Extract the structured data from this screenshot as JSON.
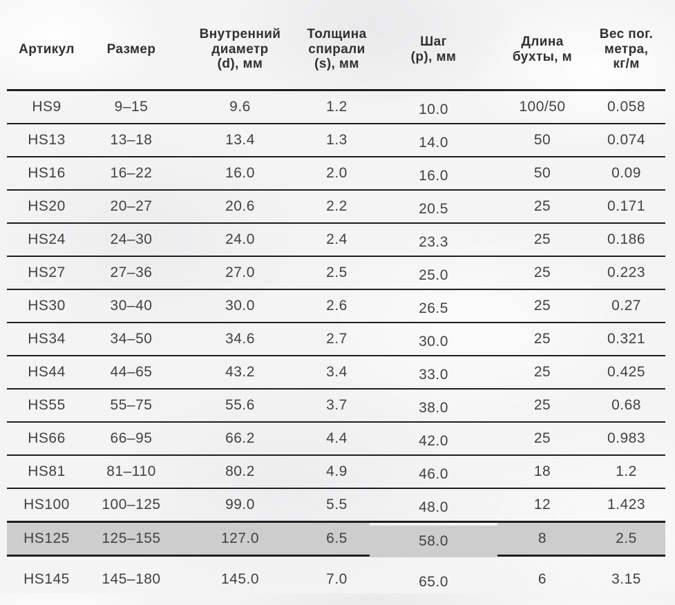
{
  "colors": {
    "highlight_color": "#cdcdcd",
    "line_color": "#1e1e1e",
    "text_color": "#414141",
    "header_text_color": "#303030",
    "background_color": "#f4f4f5"
  },
  "chart_data": {
    "type": "table",
    "title": "",
    "grid": "horizontal-rules-only",
    "columns": [
      {
        "id": "article",
        "label": "Артикул",
        "lines": [
          "Артикул"
        ]
      },
      {
        "id": "size",
        "label": "Размер",
        "lines": [
          "Размер"
        ]
      },
      {
        "id": "inner-diameter",
        "label": "Внутренний диаметр (d), мм",
        "lines": [
          "Внутренний",
          "диаметр",
          "(d), мм"
        ]
      },
      {
        "id": "spiral-thickness",
        "label": "Толщина спирали (s), мм",
        "lines": [
          "Толщина",
          "спирали",
          "(s), мм"
        ]
      },
      {
        "id": "pitch",
        "label": "Шаг (p), мм",
        "lines": [
          "Шаг",
          "(p), мм"
        ]
      },
      {
        "id": "coil-length",
        "label": "Длина бухты, м",
        "lines": [
          "Длина",
          "бухты, м"
        ]
      },
      {
        "id": "weight-per-meter",
        "label": "Вес пог. метра, кг/м",
        "lines": [
          "Вес пог.",
          "метра,",
          "кг/м"
        ]
      }
    ],
    "rows": [
      {
        "cells": [
          "HS9",
          "9–15",
          "9.6",
          "1.2",
          "10.0",
          "100/50",
          "0.058"
        ],
        "highlighted": false
      },
      {
        "cells": [
          "HS13",
          "13–18",
          "13.4",
          "1.3",
          "14.0",
          "50",
          "0.074"
        ],
        "highlighted": false
      },
      {
        "cells": [
          "HS16",
          "16–22",
          "16.0",
          "2.0",
          "16.0",
          "50",
          "0.09"
        ],
        "highlighted": false
      },
      {
        "cells": [
          "HS20",
          "20–27",
          "20.6",
          "2.2",
          "20.5",
          "25",
          "0.171"
        ],
        "highlighted": false
      },
      {
        "cells": [
          "HS24",
          "24–30",
          "24.0",
          "2.4",
          "23.3",
          "25",
          "0.186"
        ],
        "highlighted": false
      },
      {
        "cells": [
          "HS27",
          "27–36",
          "27.0",
          "2.5",
          "25.0",
          "25",
          "0.223"
        ],
        "highlighted": false
      },
      {
        "cells": [
          "HS30",
          "30–40",
          "30.0",
          "2.6",
          "26.5",
          "25",
          "0.27"
        ],
        "highlighted": false
      },
      {
        "cells": [
          "HS34",
          "34–50",
          "34.6",
          "2.7",
          "30.0",
          "25",
          "0.321"
        ],
        "highlighted": false
      },
      {
        "cells": [
          "HS44",
          "44–65",
          "43.2",
          "3.4",
          "33.0",
          "25",
          "0.425"
        ],
        "highlighted": false
      },
      {
        "cells": [
          "HS55",
          "55–75",
          "55.6",
          "3.7",
          "38.0",
          "25",
          "0.68"
        ],
        "highlighted": false
      },
      {
        "cells": [
          "HS66",
          "66–95",
          "66.2",
          "4.4",
          "42.0",
          "25",
          "0.983"
        ],
        "highlighted": false
      },
      {
        "cells": [
          "HS81",
          "81–110",
          "80.2",
          "4.9",
          "46.0",
          "18",
          "1.2"
        ],
        "highlighted": false
      },
      {
        "cells": [
          "HS100",
          "100–125",
          "99.0",
          "5.5",
          "48.0",
          "12",
          "1.423"
        ],
        "highlighted": false
      },
      {
        "cells": [
          "HS125",
          "125–155",
          "127.0",
          "6.5",
          "58.0",
          "8",
          "2.5"
        ],
        "highlighted": true
      },
      {
        "cells": [
          "HS145",
          "145–180",
          "145.0",
          "7.0",
          "65.0",
          "6",
          "3.15"
        ],
        "highlighted": false
      }
    ]
  }
}
